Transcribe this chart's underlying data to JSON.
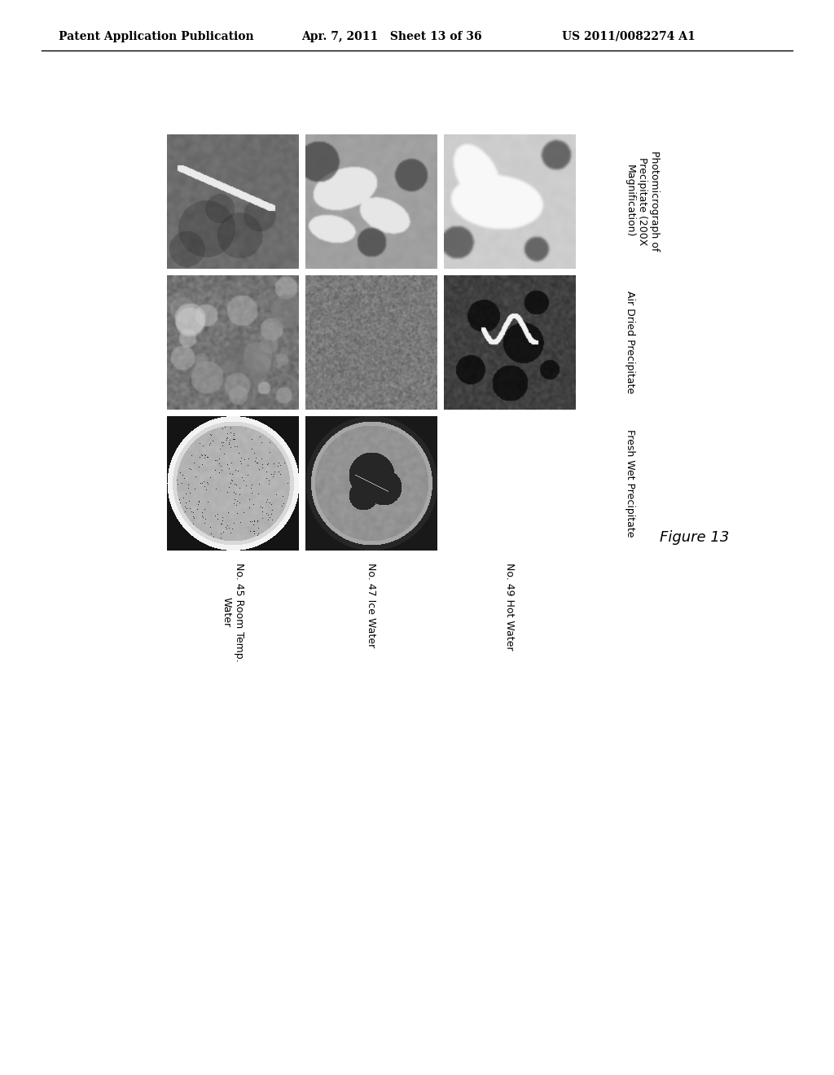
{
  "header_left": "Patent Application Publication",
  "header_mid": "Apr. 7, 2011   Sheet 13 of 36",
  "header_right": "US 2011/0082274 A1",
  "figure_label": "Figure 13",
  "row_labels": [
    "Photomicrograph of\nPrecipitate (200X\nMagnification)",
    "Air Dried Precipitate",
    "Fresh Wet Precipitate"
  ],
  "col_labels": [
    "No. 45 Room Temp.\nWater",
    "No. 47 Ice Water",
    "No. 49 Hot Water"
  ],
  "background_color": "#ffffff",
  "text_color": "#000000"
}
